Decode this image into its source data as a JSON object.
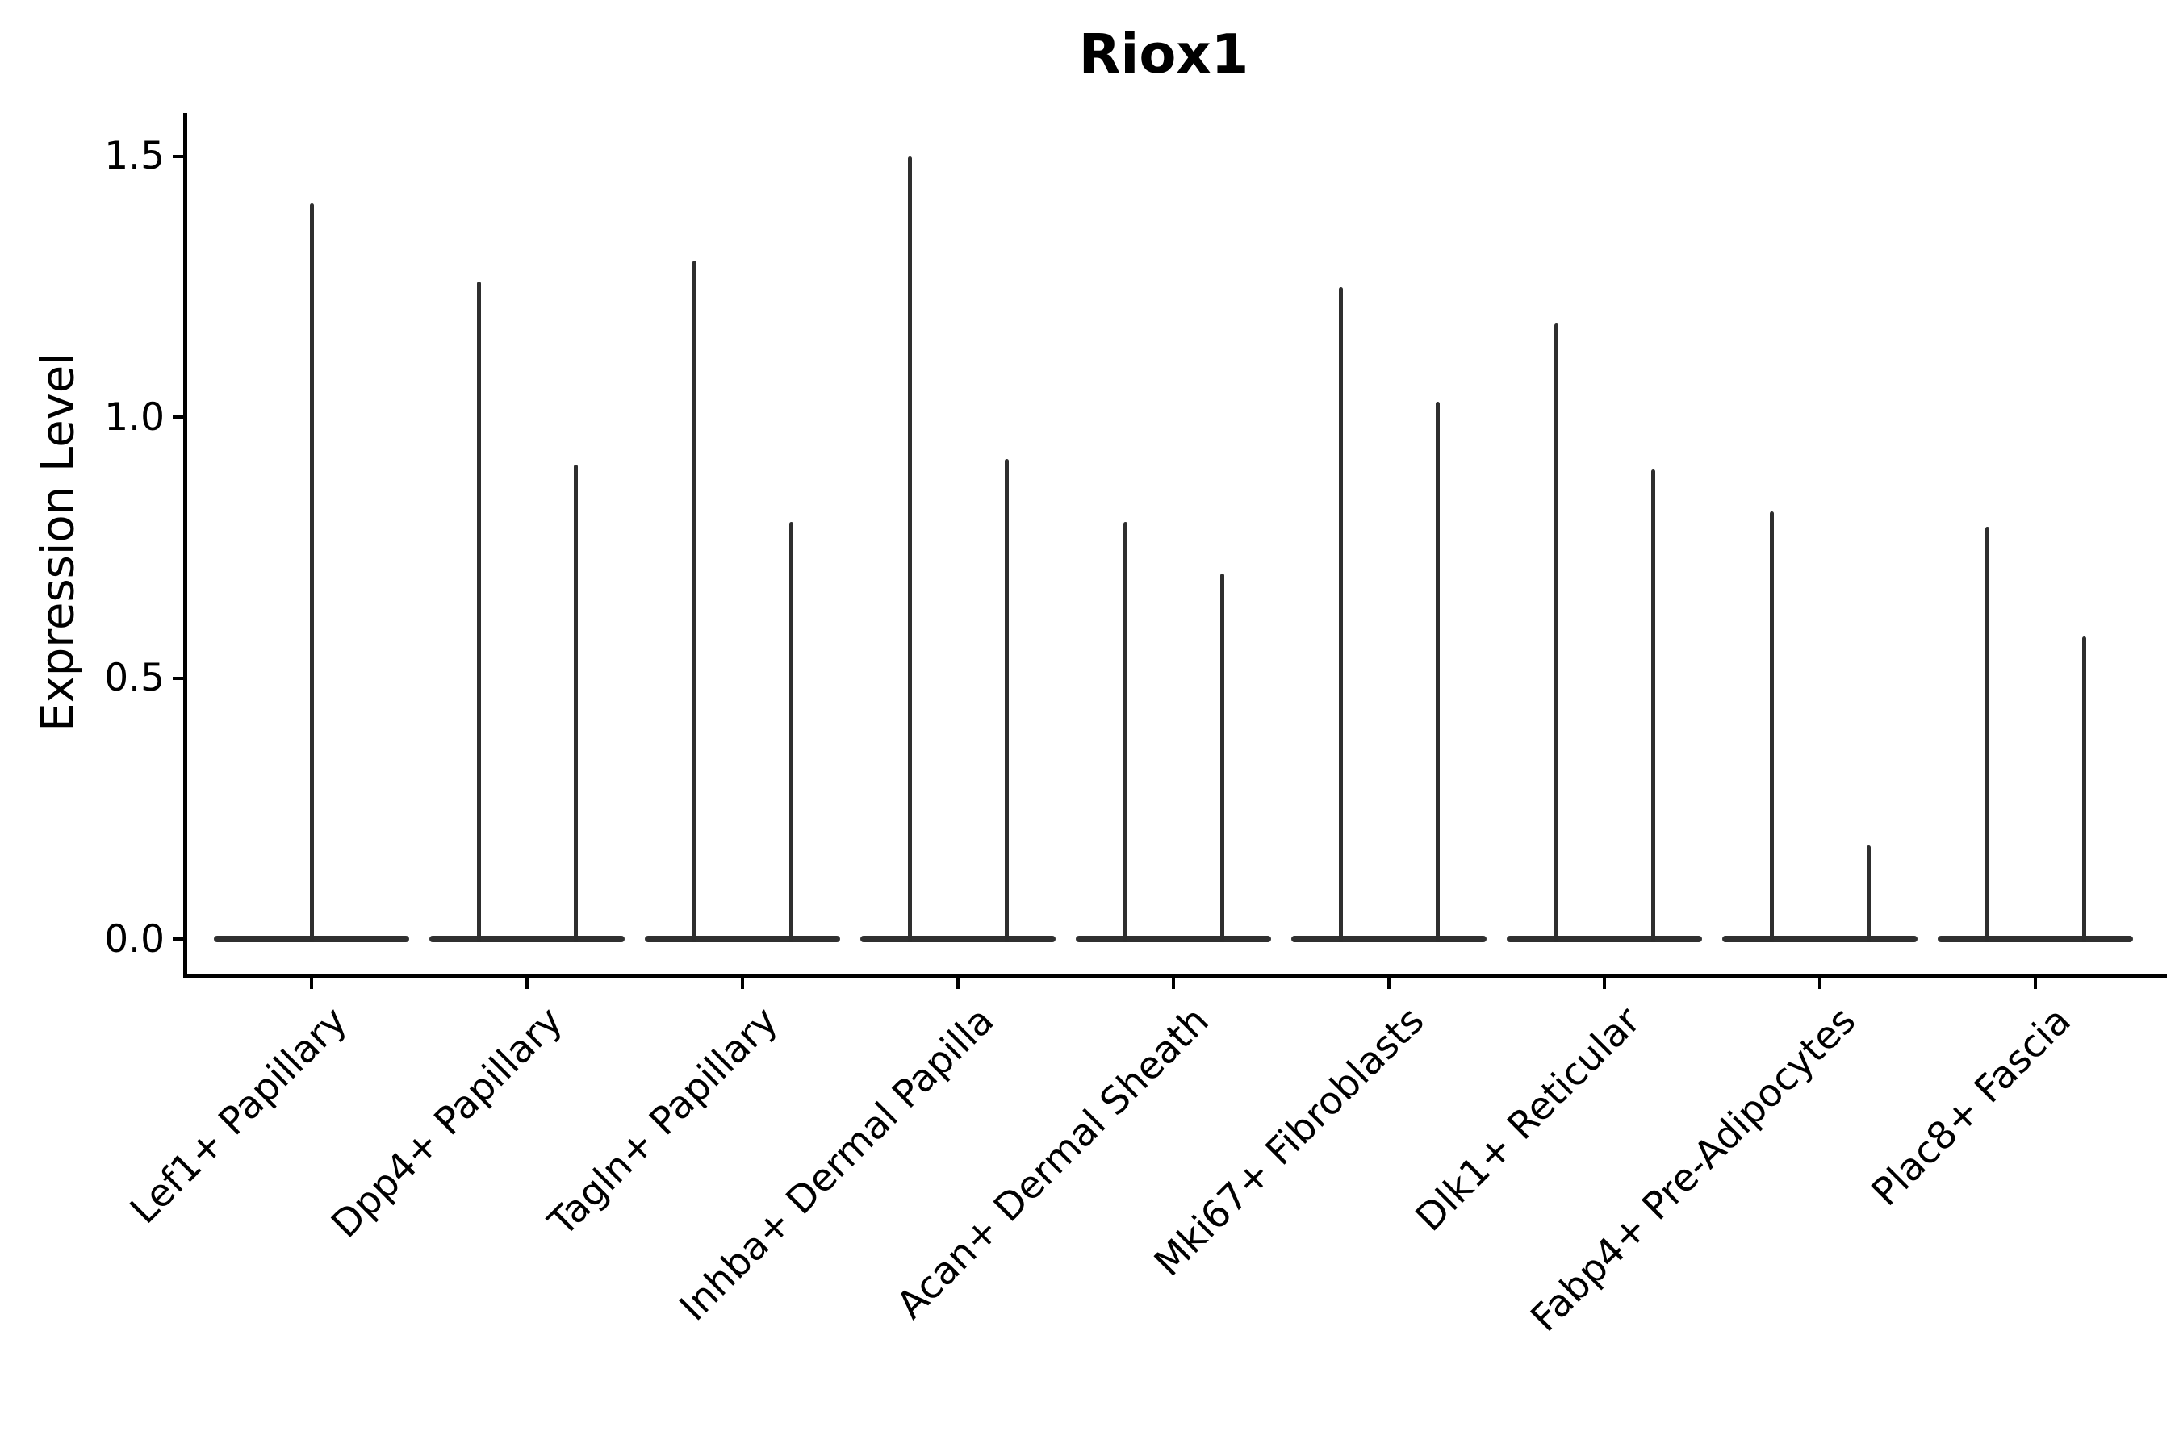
{
  "chart_data": {
    "type": "violin",
    "title": "Riox1",
    "xlabel": "",
    "ylabel": "Expression Level",
    "yticks": [
      0.0,
      0.5,
      1.0,
      1.5
    ],
    "ylim": [
      -0.07,
      1.58
    ],
    "grid": false,
    "legend": "none",
    "style": "flat-base violins with thin density spikes; single-spike violin for first category, paired spikes for the rest",
    "categories": [
      "Lef1+ Papillary",
      "Dpp4+ Papillary",
      "Tagln+ Papillary",
      "Inhba+ Dermal Papilla",
      "Acan+ Dermal Sheath",
      "Mki67+ Fibroblasts",
      "Dlk1+ Reticular",
      "Fabp4+ Pre-Adipocytes",
      "Plac8+ Fascia"
    ],
    "violins": [
      {
        "category": "Lef1+ Papillary",
        "maxima": [
          1.41
        ]
      },
      {
        "category": "Dpp4+ Papillary",
        "maxima": [
          1.26,
          0.91
        ]
      },
      {
        "category": "Tagln+ Papillary",
        "maxima": [
          1.3,
          0.8
        ]
      },
      {
        "category": "Inhba+ Dermal Papilla",
        "maxima": [
          1.5,
          0.92
        ]
      },
      {
        "category": "Acan+ Dermal Sheath",
        "maxima": [
          0.8,
          0.7
        ]
      },
      {
        "category": "Mki67+ Fibroblasts",
        "maxima": [
          1.25,
          1.03
        ]
      },
      {
        "category": "Dlk1+ Reticular",
        "maxima": [
          1.18,
          0.9
        ]
      },
      {
        "category": "Fabp4+ Pre-Adipocytes",
        "maxima": [
          0.82,
          0.18
        ]
      },
      {
        "category": "Plac8+ Fascia",
        "maxima": [
          0.79,
          0.58
        ]
      }
    ],
    "baseline_value": 0.0,
    "colors": {
      "marks": "#2e2e2e",
      "axis": "#000000",
      "text": "#000000",
      "background": "#ffffff"
    }
  }
}
